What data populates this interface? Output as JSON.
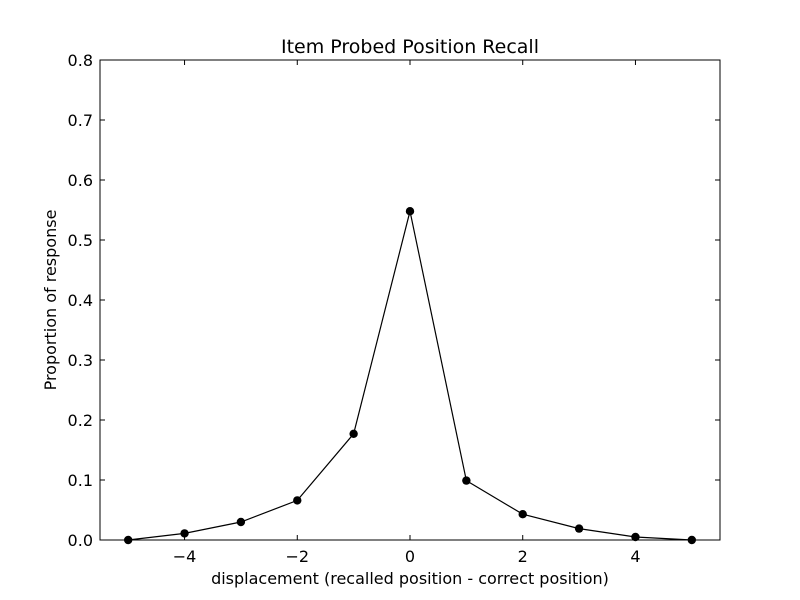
{
  "chart_data": {
    "type": "line",
    "title": "Item Probed Position Recall",
    "xlabel": "displacement (recalled position - correct position)",
    "ylabel": "Proportion of response",
    "xlim": [
      -5.5,
      5.5
    ],
    "ylim": [
      0,
      0.8
    ],
    "xticks": [
      -4,
      -2,
      0,
      2,
      4
    ],
    "xtick_labels": [
      "−4",
      "−2",
      "0",
      "2",
      "4"
    ],
    "yticks": [
      0.0,
      0.1,
      0.2,
      0.3,
      0.4,
      0.5,
      0.6,
      0.7,
      0.8
    ],
    "ytick_labels": [
      "0.0",
      "0.1",
      "0.2",
      "0.3",
      "0.4",
      "0.5",
      "0.6",
      "0.7",
      "0.8"
    ],
    "grid": false,
    "series": [
      {
        "color": "#000000",
        "marker": "circle",
        "x": [
          -5,
          -4,
          -3,
          -2,
          -1,
          0,
          1,
          2,
          3,
          4,
          5
        ],
        "y": [
          0.0,
          0.011,
          0.03,
          0.066,
          0.177,
          0.548,
          0.099,
          0.043,
          0.019,
          0.005,
          0.0
        ]
      }
    ]
  }
}
